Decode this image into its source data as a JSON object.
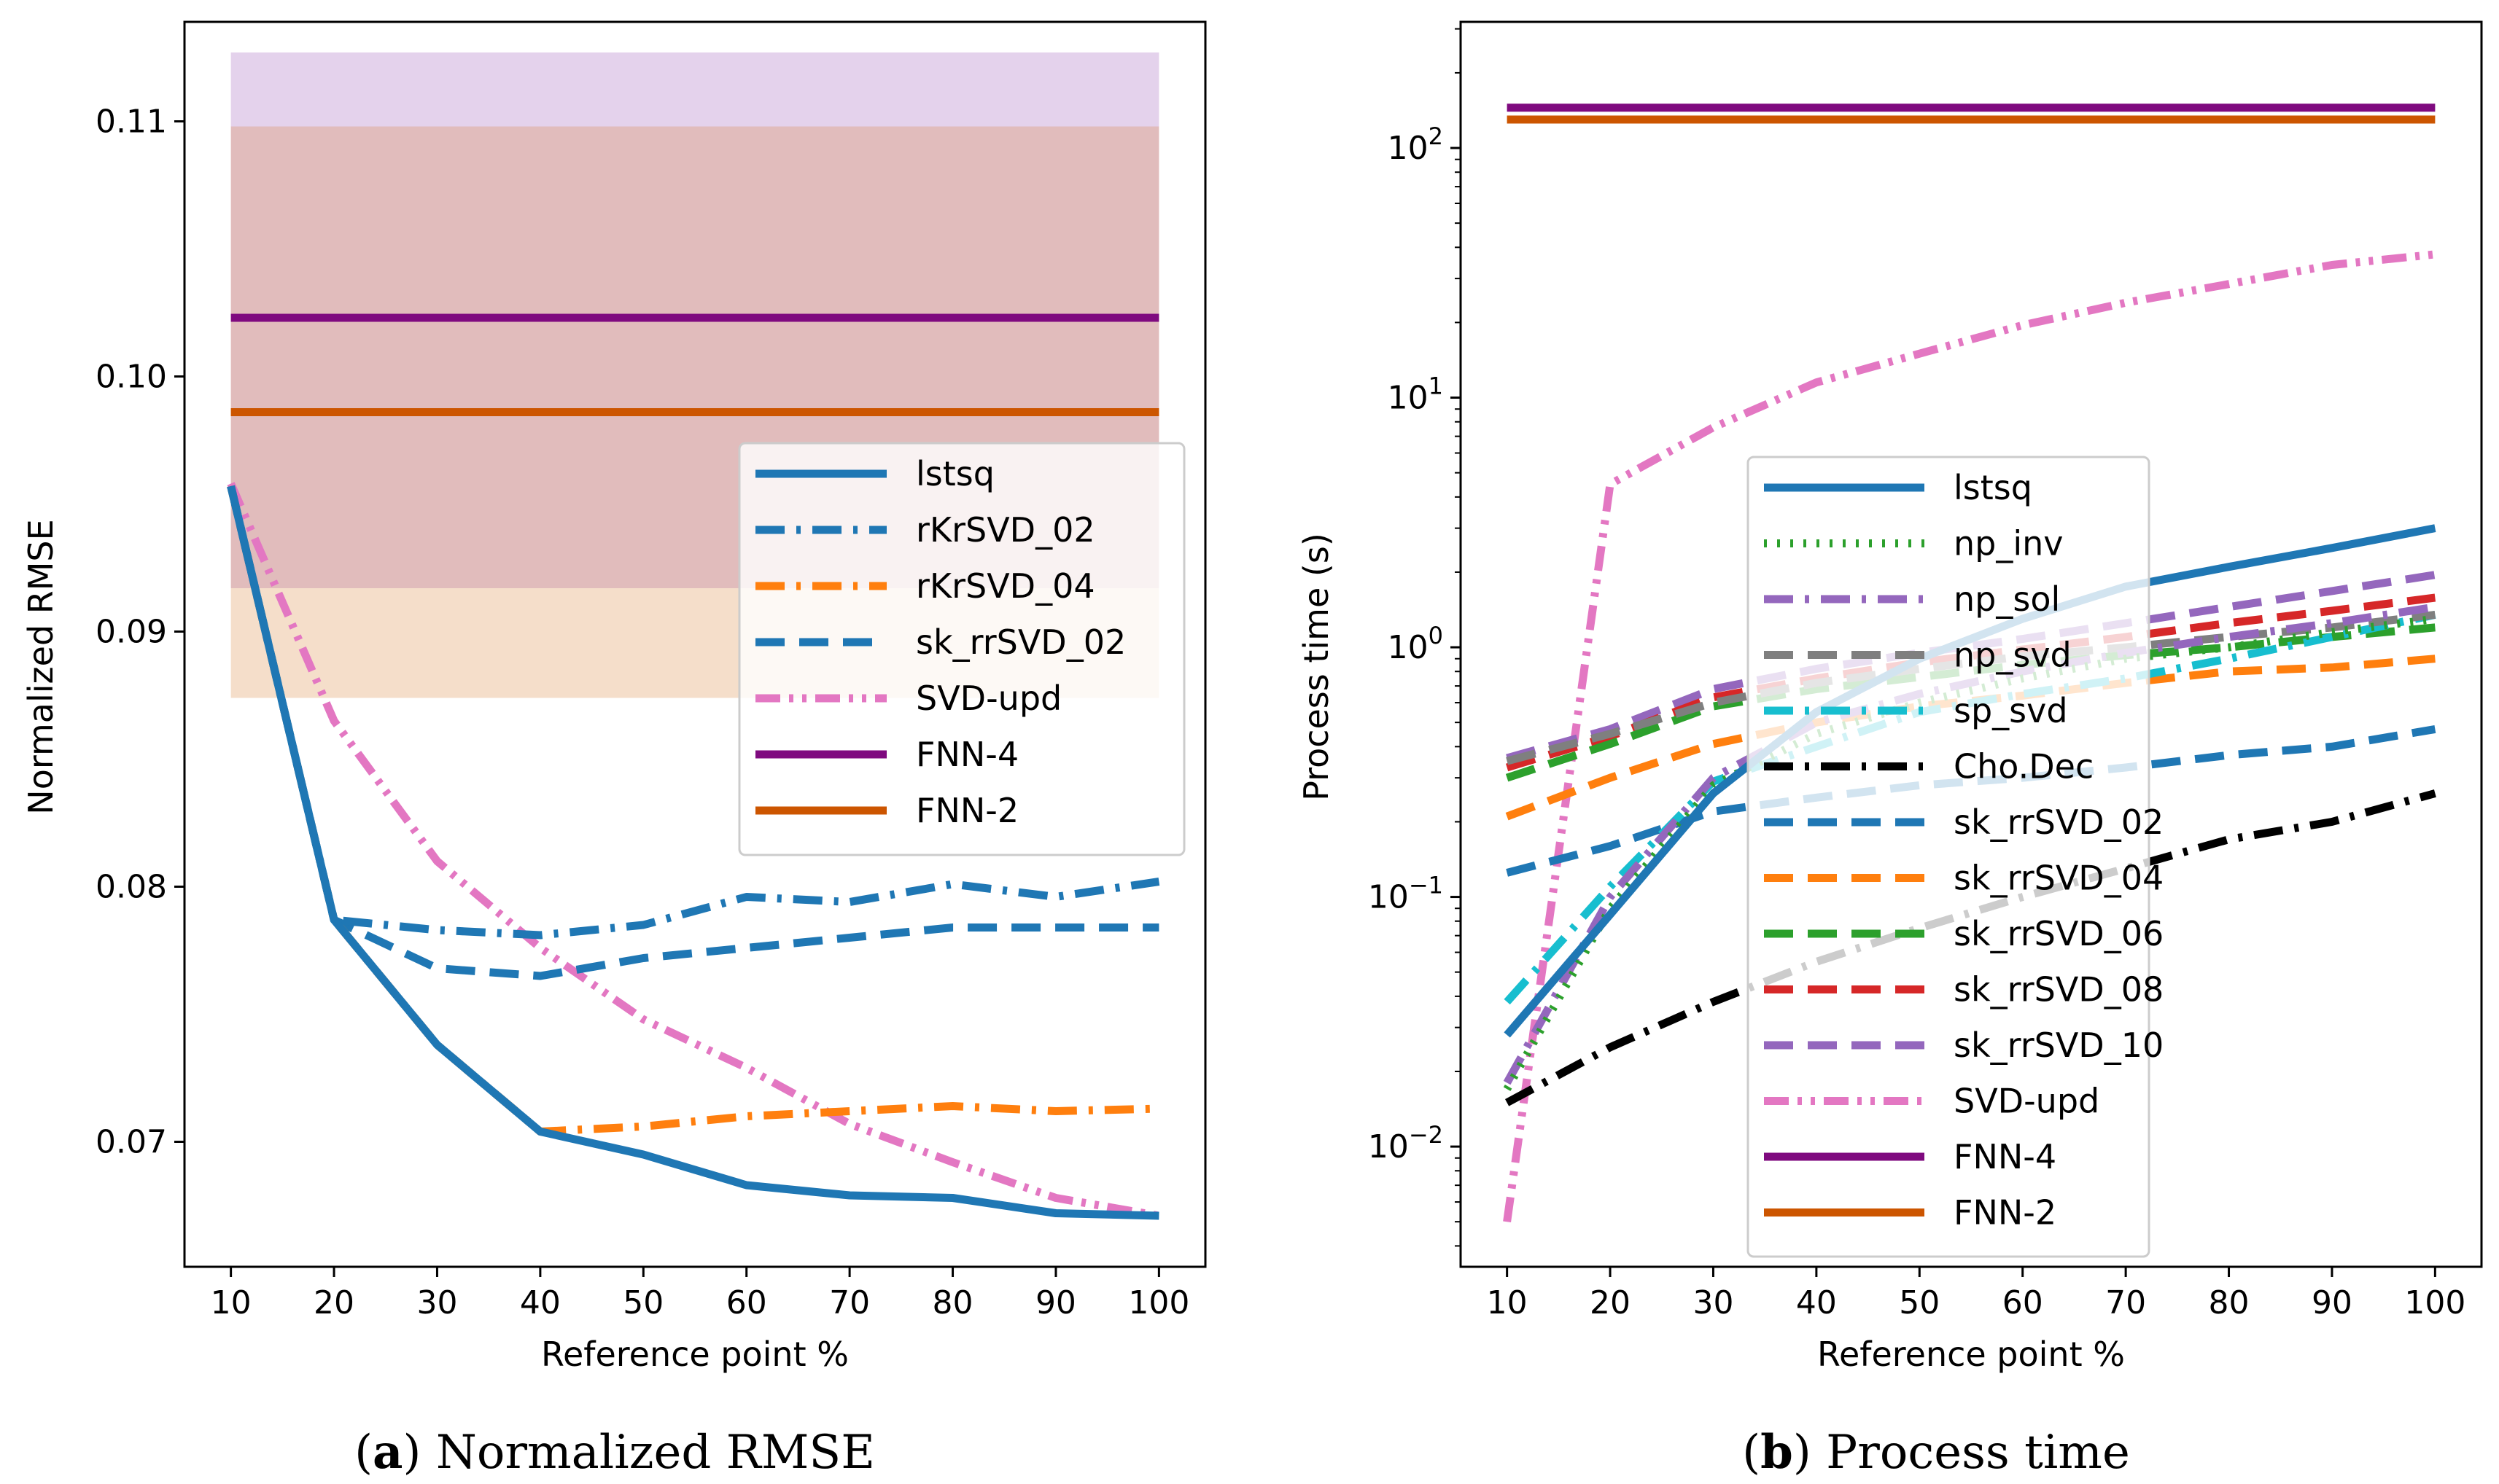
{
  "charts": [
    {
      "type": "line",
      "title": "",
      "xlabel": "Reference point %",
      "ylabel": "Normalized RMSE",
      "yscale": "linear",
      "x": [
        10,
        20,
        30,
        40,
        50,
        60,
        70,
        80,
        90,
        100
      ],
      "xticks": [
        "10",
        "20",
        "30",
        "40",
        "50",
        "60",
        "70",
        "80",
        "90",
        "100"
      ],
      "xlim": [
        5.5,
        104.5
      ],
      "ylim": [
        0.0651,
        0.1139
      ],
      "yticks": [
        {
          "v": 0.07,
          "label": "0.07"
        },
        {
          "v": 0.08,
          "label": "0.08"
        },
        {
          "v": 0.09,
          "label": "0.09"
        },
        {
          "v": 0.1,
          "label": "0.10"
        },
        {
          "v": 0.11,
          "label": "0.11"
        }
      ],
      "bands": [
        {
          "color": "#a66bbf",
          "opacity": 0.3,
          "low": 0.0917,
          "high": 0.1127
        },
        {
          "color": "#d87a2c",
          "opacity": 0.25,
          "low": 0.0874,
          "high": 0.1098
        }
      ],
      "legend_position": "center-right",
      "series": [
        {
          "name": "lstsq",
          "color": "#1f77b4",
          "dash": "solid",
          "values": [
            0.0957,
            0.0787,
            0.0738,
            0.0704,
            0.0695,
            0.0683,
            0.0679,
            0.0678,
            0.0672,
            0.0671
          ]
        },
        {
          "name": "rKrSVD_02",
          "color": "#1f77b4",
          "dash": "dashdot",
          "values": [
            0.0957,
            0.0787,
            0.0783,
            0.0781,
            0.0785,
            0.0796,
            0.0794,
            0.0801,
            0.0796,
            0.0802
          ]
        },
        {
          "name": "rKrSVD_04",
          "color": "#ff7f0e",
          "dash": "dashdot",
          "values": [
            0.0957,
            0.0787,
            0.0738,
            0.0704,
            0.0706,
            0.071,
            0.0712,
            0.0714,
            0.0712,
            0.0713
          ]
        },
        {
          "name": "sk_rrSVD_02",
          "color": "#1f77b4",
          "dash": "dashed",
          "values": [
            0.0957,
            0.0787,
            0.0768,
            0.0765,
            0.0772,
            0.0776,
            0.078,
            0.0784,
            0.0784,
            0.0784
          ]
        },
        {
          "name": "SVD-upd",
          "color": "#e377c2",
          "dash": "dashdotdot",
          "values": [
            0.0958,
            0.0865,
            0.081,
            0.0776,
            0.0748,
            0.0729,
            0.0707,
            0.0692,
            0.0678,
            0.0671
          ]
        },
        {
          "name": "FNN-4",
          "color": "#7f0a7f",
          "dash": "solid",
          "values": [
            0.1023,
            0.1023,
            0.1023,
            0.1023,
            0.1023,
            0.1023,
            0.1023,
            0.1023,
            0.1023,
            0.1023
          ]
        },
        {
          "name": "FNN-2",
          "color": "#cc5500",
          "dash": "solid",
          "values": [
            0.0986,
            0.0986,
            0.0986,
            0.0986,
            0.0986,
            0.0986,
            0.0986,
            0.0986,
            0.0986,
            0.0986
          ]
        }
      ],
      "caption_letter": "a",
      "caption_text": " Normalized RMSE"
    },
    {
      "type": "line",
      "title": "",
      "xlabel": "Reference point %",
      "ylabel": "Process time (s)",
      "yscale": "log",
      "x": [
        10,
        20,
        30,
        40,
        50,
        60,
        70,
        80,
        90,
        100
      ],
      "xticks": [
        "10",
        "20",
        "30",
        "40",
        "50",
        "60",
        "70",
        "80",
        "90",
        "100"
      ],
      "xlim": [
        5.5,
        104.5
      ],
      "ylim": [
        0.0033,
        320
      ],
      "yticks": [
        {
          "v": 0.01,
          "base": "10",
          "exp": "−2"
        },
        {
          "v": 0.1,
          "base": "10",
          "exp": "−1"
        },
        {
          "v": 1,
          "base": "10",
          "exp": "0"
        },
        {
          "v": 10,
          "base": "10",
          "exp": "1"
        },
        {
          "v": 100,
          "base": "10",
          "exp": "2"
        }
      ],
      "bands": [],
      "legend_position": "center",
      "series": [
        {
          "name": "lstsq",
          "color": "#1f77b4",
          "dash": "solid",
          "values": [
            0.028,
            0.085,
            0.26,
            0.55,
            0.9,
            1.3,
            1.75,
            2.1,
            2.5,
            3.0
          ]
        },
        {
          "name": "np_inv",
          "color": "#2ca02c",
          "dash": "dotted",
          "values": [
            0.017,
            0.09,
            0.28,
            0.45,
            0.6,
            0.75,
            0.9,
            1.0,
            1.15,
            1.3
          ]
        },
        {
          "name": "np_sol",
          "color": "#9467bd",
          "dash": "dashdot",
          "values": [
            0.018,
            0.1,
            0.3,
            0.5,
            0.65,
            0.8,
            0.95,
            1.1,
            1.25,
            1.45
          ]
        },
        {
          "name": "np_svd",
          "color": "#7f7f7f",
          "dash": "dashed",
          "values": [
            0.35,
            0.45,
            0.6,
            0.72,
            0.82,
            0.92,
            1.0,
            1.1,
            1.2,
            1.35
          ]
        },
        {
          "name": "sp_svd",
          "color": "#17becf",
          "dash": "dashdot",
          "values": [
            0.038,
            0.11,
            0.29,
            0.4,
            0.55,
            0.65,
            0.75,
            0.9,
            1.1,
            1.35
          ]
        },
        {
          "name": "Cho.Dec",
          "color": "#000000",
          "dash": "dashdot",
          "values": [
            0.015,
            0.025,
            0.038,
            0.055,
            0.075,
            0.1,
            0.13,
            0.17,
            0.2,
            0.26
          ]
        },
        {
          "name": "sk_rrSVD_02",
          "color": "#1f77b4",
          "dash": "dashed",
          "values": [
            0.125,
            0.16,
            0.22,
            0.25,
            0.28,
            0.3,
            0.33,
            0.37,
            0.4,
            0.47
          ]
        },
        {
          "name": "sk_rrSVD_04",
          "color": "#ff7f0e",
          "dash": "dashed",
          "values": [
            0.21,
            0.3,
            0.41,
            0.5,
            0.58,
            0.64,
            0.72,
            0.8,
            0.83,
            0.9
          ]
        },
        {
          "name": "sk_rrSVD_06",
          "color": "#2ca02c",
          "dash": "dashed",
          "values": [
            0.3,
            0.41,
            0.58,
            0.68,
            0.76,
            0.85,
            0.93,
            1.0,
            1.1,
            1.2
          ]
        },
        {
          "name": "sk_rrSVD_08",
          "color": "#d62728",
          "dash": "dashed",
          "values": [
            0.33,
            0.44,
            0.63,
            0.75,
            0.87,
            0.98,
            1.1,
            1.25,
            1.4,
            1.58
          ]
        },
        {
          "name": "sk_rrSVD_10",
          "color": "#9467bd",
          "dash": "dashed",
          "values": [
            0.36,
            0.47,
            0.68,
            0.82,
            0.95,
            1.08,
            1.25,
            1.45,
            1.68,
            1.95
          ]
        },
        {
          "name": "SVD-upd",
          "color": "#e377c2",
          "dash": "dashdotdot",
          "values": [
            0.005,
            4.5,
            7.6,
            11.5,
            15.0,
            19.5,
            24.0,
            28.5,
            34.0,
            37.5
          ]
        },
        {
          "name": "FNN-4",
          "color": "#7f0a7f",
          "dash": "solid",
          "values": [
            145,
            145,
            145,
            145,
            145,
            145,
            145,
            145,
            145,
            145
          ]
        },
        {
          "name": "FNN-2",
          "color": "#cc5500",
          "dash": "solid",
          "values": [
            130,
            130,
            130,
            130,
            130,
            130,
            130,
            130,
            130,
            130
          ]
        }
      ],
      "caption_letter": "b",
      "caption_text": " Process time"
    }
  ]
}
